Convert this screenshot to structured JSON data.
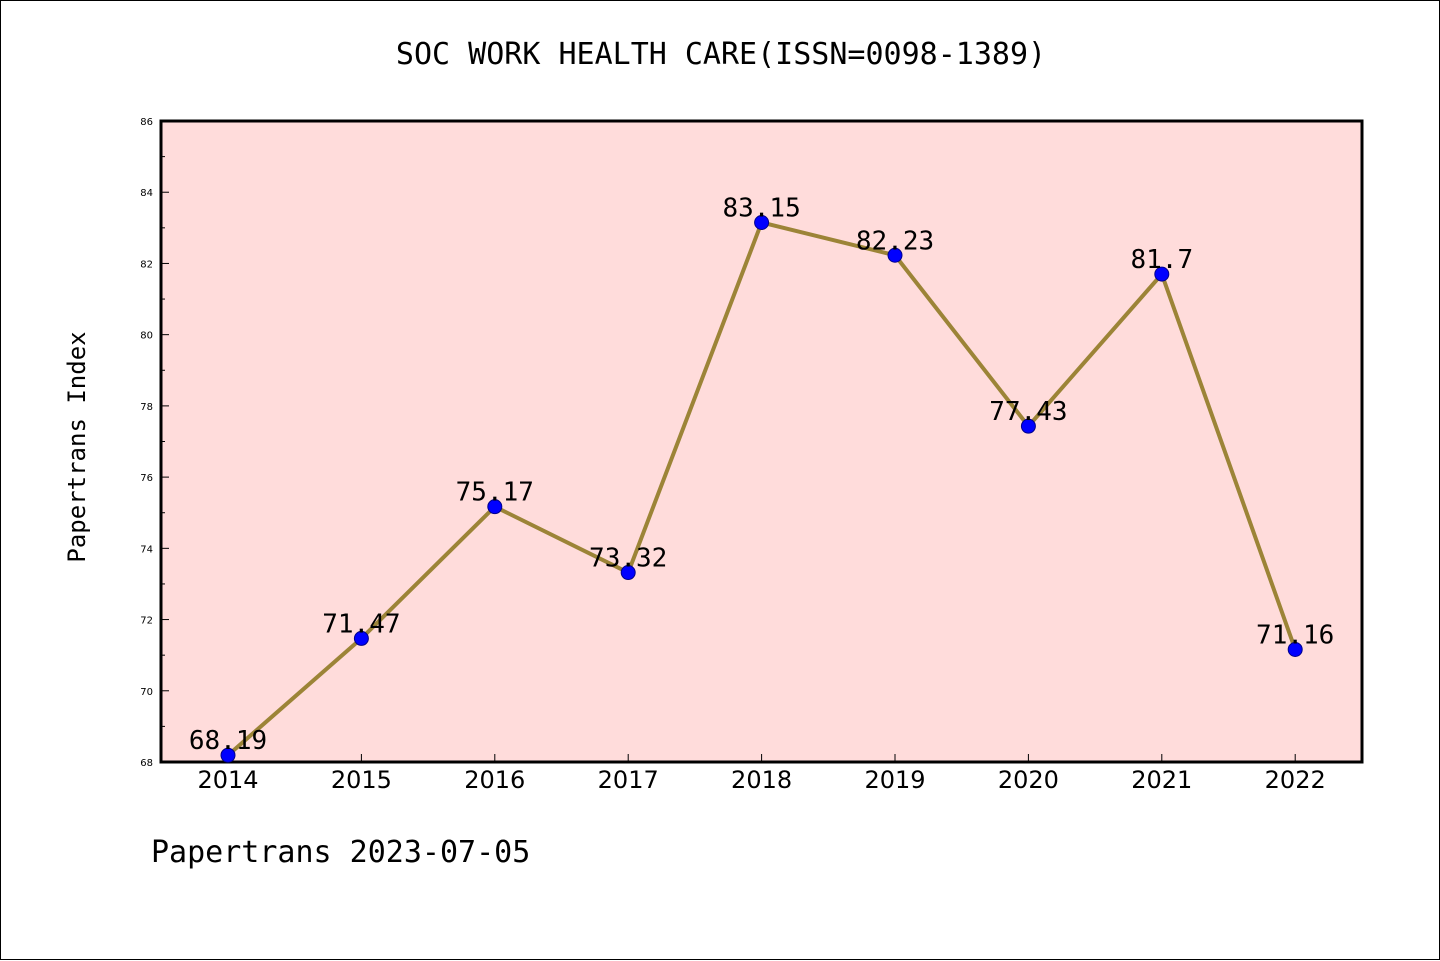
{
  "page": {
    "credit": "Papertrans 2023-07-05"
  },
  "chart_data": {
    "type": "line",
    "title": "SOC WORK HEALTH CARE(ISSN=0098-1389)",
    "xlabel": "",
    "ylabel": "Papertrans Index",
    "categories": [
      "2014",
      "2015",
      "2016",
      "2017",
      "2018",
      "2019",
      "2020",
      "2021",
      "2022"
    ],
    "series": [
      {
        "values": [
          68.19,
          71.47,
          75.17,
          73.32,
          83.15,
          82.23,
          77.43,
          81.7,
          71.16
        ],
        "labels": [
          "68.19",
          "71.47",
          "75.17",
          "73.32",
          "83.15",
          "82.23",
          "77.43",
          "81.7",
          "71.16"
        ]
      }
    ],
    "ylim": [
      68,
      86
    ],
    "yticks": [
      "68",
      "70",
      "72",
      "74",
      "76",
      "78",
      "80",
      "82",
      "84",
      "86"
    ],
    "grid": false,
    "colors": {
      "plot_background": "#ffdcdb",
      "line": "#9c8437",
      "marker": "#0000ff",
      "marker_edge": "#00008b",
      "axis": "#000000"
    }
  }
}
